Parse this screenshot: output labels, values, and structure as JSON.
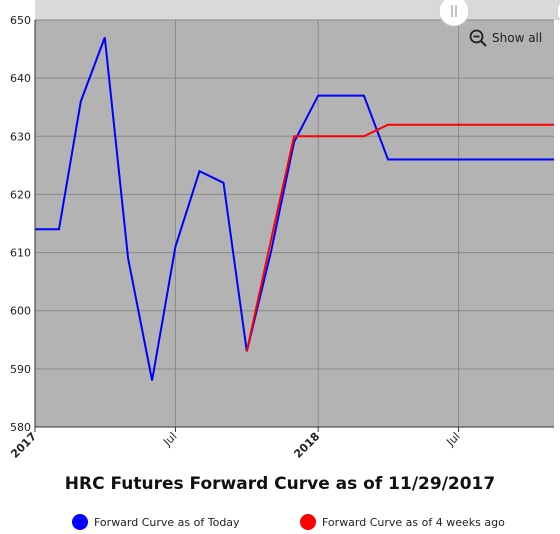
{
  "title": "HRC Futures Forward Curve as of 11/29/2017",
  "show_all_label": "Show all",
  "colors": {
    "today": "#0000ff",
    "four_weeks": "#ff0000",
    "plot_bg": "#b3b3b3",
    "scrollbar": "#d9d9d9"
  },
  "legend": [
    {
      "label": "Forward Curve as of Today",
      "color": "#0000ff"
    },
    {
      "label": "Forward Curve as of 4 weeks ago",
      "color": "#ff0000"
    }
  ],
  "chart_data": {
    "type": "line",
    "title": "HRC Futures Forward Curve as of 11/29/2017",
    "xlabel": "",
    "ylabel": "",
    "x_range": [
      "2017-01-01",
      "2018-11-01"
    ],
    "ylim": [
      580,
      650
    ],
    "yticks": [
      580,
      590,
      600,
      610,
      620,
      630,
      640,
      650
    ],
    "xticks": [
      {
        "date": "2017-01-01",
        "label": "2017",
        "bold": true
      },
      {
        "date": "2017-07-01",
        "label": "Jul",
        "bold": false
      },
      {
        "date": "2018-01-01",
        "label": "2018",
        "bold": true
      },
      {
        "date": "2018-07-01",
        "label": "Jul",
        "bold": false
      }
    ],
    "grid": true,
    "legend_position": "bottom",
    "series": [
      {
        "name": "Forward Curve as of Today",
        "color": "#0000ff",
        "points": [
          [
            "2017-01-01",
            614
          ],
          [
            "2017-02-01",
            614
          ],
          [
            "2017-03-01",
            636
          ],
          [
            "2017-04-01",
            647
          ],
          [
            "2017-05-01",
            609
          ],
          [
            "2017-06-01",
            588
          ],
          [
            "2017-07-01",
            611
          ],
          [
            "2017-08-01",
            624
          ],
          [
            "2017-09-01",
            622
          ],
          [
            "2017-10-01",
            593
          ],
          [
            "2017-11-01",
            610
          ],
          [
            "2017-12-01",
            629
          ],
          [
            "2018-01-01",
            637
          ],
          [
            "2018-02-01",
            637
          ],
          [
            "2018-03-01",
            637
          ],
          [
            "2018-04-01",
            626
          ],
          [
            "2018-05-01",
            626
          ],
          [
            "2018-06-01",
            626
          ],
          [
            "2018-07-01",
            626
          ],
          [
            "2018-08-01",
            626
          ],
          [
            "2018-09-01",
            626
          ],
          [
            "2018-10-01",
            626
          ],
          [
            "2018-11-01",
            626
          ]
        ]
      },
      {
        "name": "Forward Curve as of 4 weeks ago",
        "color": "#ff0000",
        "points": [
          [
            "2017-10-01",
            593
          ],
          [
            "2017-11-01",
            612
          ],
          [
            "2017-12-01",
            630
          ],
          [
            "2018-01-01",
            630
          ],
          [
            "2018-02-01",
            630
          ],
          [
            "2018-03-01",
            630
          ],
          [
            "2018-04-01",
            632
          ],
          [
            "2018-05-01",
            632
          ],
          [
            "2018-06-01",
            632
          ],
          [
            "2018-07-01",
            632
          ],
          [
            "2018-08-01",
            632
          ],
          [
            "2018-09-01",
            632
          ],
          [
            "2018-10-01",
            632
          ],
          [
            "2018-11-01",
            632
          ]
        ]
      }
    ]
  }
}
